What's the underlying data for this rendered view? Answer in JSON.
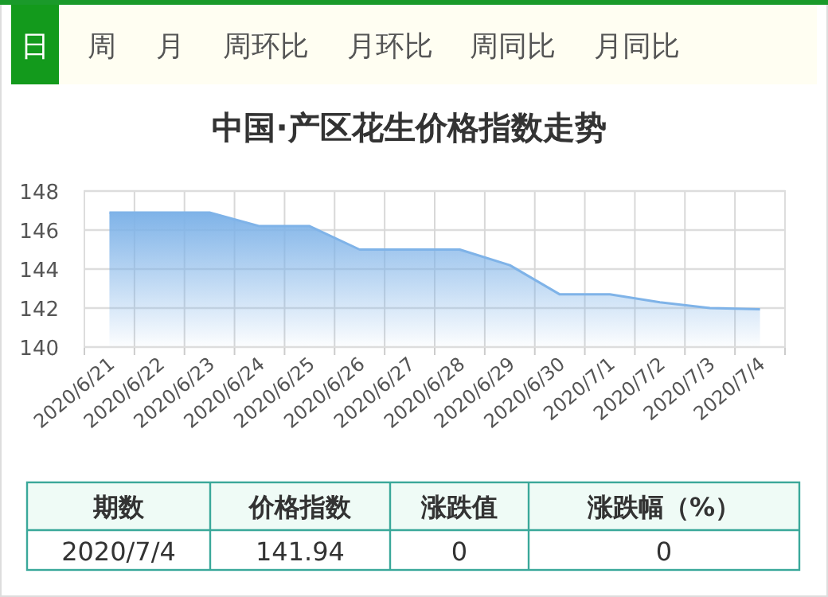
{
  "chart_data": {
    "type": "area",
    "title": "中国·产区花生价格指数走势",
    "categories": [
      "2020/6/21",
      "2020/6/22",
      "2020/6/23",
      "2020/6/24",
      "2020/6/25",
      "2020/6/26",
      "2020/6/27",
      "2020/6/28",
      "2020/6/29",
      "2020/6/30",
      "2020/7/1",
      "2020/7/2",
      "2020/7/3",
      "2020/7/4"
    ],
    "series": [
      {
        "color": "#7fb3e8",
        "values": [
          146.9,
          146.9,
          146.9,
          146.2,
          146.2,
          145.0,
          145.0,
          145.0,
          144.2,
          142.7,
          142.7,
          142.3,
          142.0,
          141.94
        ]
      }
    ],
    "ylim": [
      140,
      148
    ],
    "yticks": [
      140,
      142,
      144,
      146,
      148
    ],
    "grid": true,
    "annotations": [
      "日",
      "周",
      "月",
      "周环比",
      "月环比",
      "周同比",
      "月同比",
      "期数",
      "价格指数",
      "涨跌值",
      "涨跌幅（%）",
      "2020/7/4",
      "141.94",
      "0",
      "0"
    ]
  }
}
